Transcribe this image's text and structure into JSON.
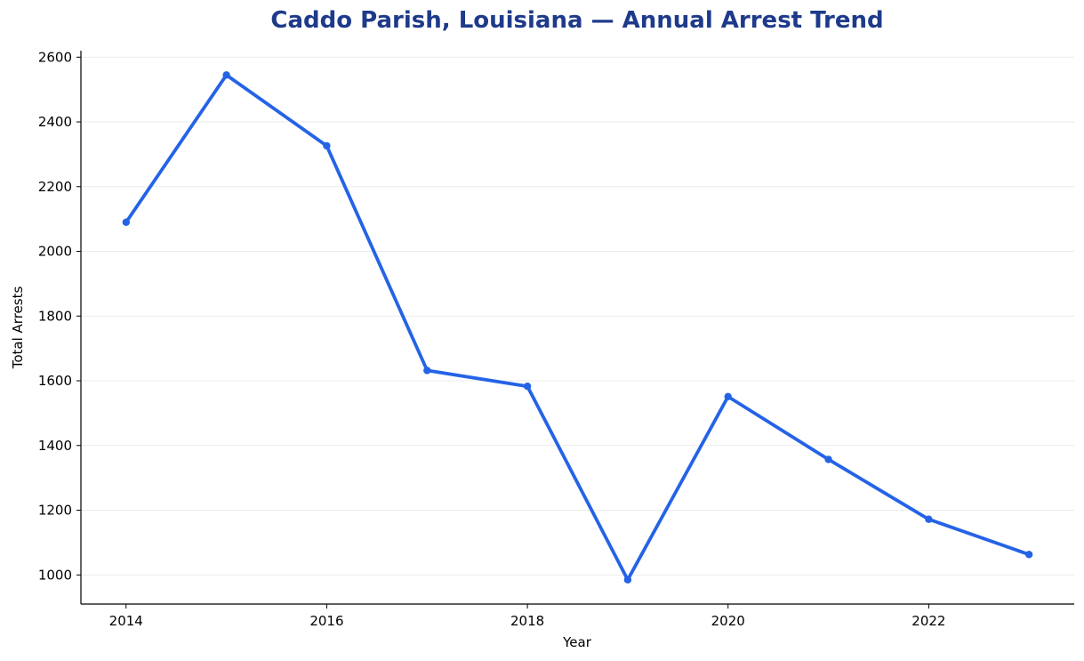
{
  "chart_data": {
    "type": "line",
    "title": "Caddo Parish, Louisiana — Annual Arrest Trend",
    "xlabel": "Year",
    "ylabel": "Total Arrests",
    "x": [
      2014,
      2015,
      2016,
      2017,
      2018,
      2019,
      2020,
      2021,
      2022,
      2023
    ],
    "series": [
      {
        "values": [
          2090,
          2545,
          2326,
          1632,
          1583,
          985,
          1551,
          1357,
          1172,
          1063
        ]
      }
    ],
    "xlim": [
      2013.55,
      2023.45
    ],
    "ylim": [
      910,
      2620
    ],
    "xticks": [
      2014,
      2016,
      2018,
      2020,
      2022
    ],
    "yticks": [
      1000,
      1200,
      1400,
      1600,
      1800,
      2000,
      2200,
      2400,
      2600
    ],
    "grid": "horizontal",
    "legend": "none",
    "colors": {
      "line": "#2563e6",
      "title": "#1e3a8a",
      "grid": "#ebebeb",
      "axis": "#000000"
    }
  }
}
